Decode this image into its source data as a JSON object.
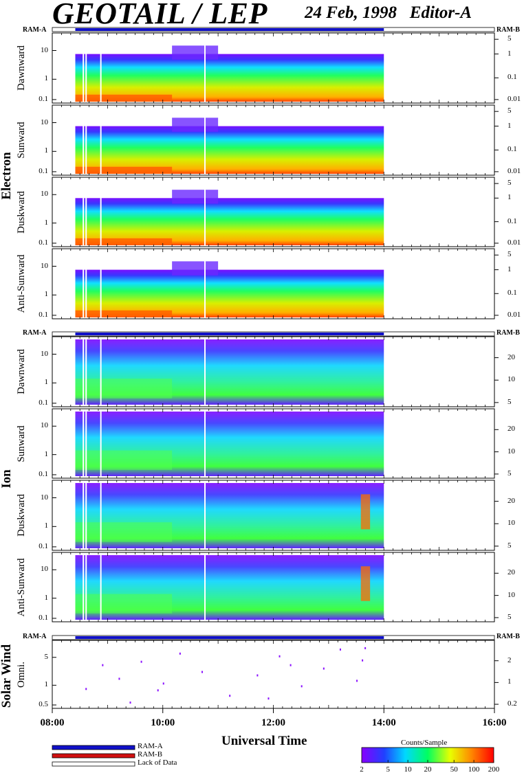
{
  "chart_data": {
    "type": "heatmap",
    "title": "GEOTAIL / LEP",
    "date": "24 Feb, 1998",
    "editor": "Editor-A",
    "xlabel": "Universal Time",
    "xlim": [
      "08:00",
      "16:00"
    ],
    "x_ticks": [
      "08:00",
      "10:00",
      "12:00",
      "14:00",
      "16:00"
    ],
    "data_coverage": [
      "08:25",
      "14:00"
    ],
    "groups": [
      {
        "name": "Electron",
        "panels": [
          {
            "label": "Dawnward",
            "left_ticks": [
              "10",
              "1",
              "0.1"
            ],
            "right_ticks": [
              "5",
              "1",
              "0.1",
              "0.01"
            ]
          },
          {
            "label": "Sunward",
            "left_ticks": [
              "10",
              "1",
              "0.1"
            ],
            "right_ticks": [
              "5",
              "1",
              "0.1",
              "0.01"
            ]
          },
          {
            "label": "Duskward",
            "left_ticks": [
              "10",
              "1",
              "0.1"
            ],
            "right_ticks": [
              "5",
              "1",
              "0.1",
              "0.01"
            ]
          },
          {
            "label": "Anti-Sunward",
            "left_ticks": [
              "10",
              "1",
              "0.1"
            ],
            "right_ticks": [
              "5",
              "1",
              "0.1",
              "0.01"
            ]
          }
        ]
      },
      {
        "name": "Ion",
        "panels": [
          {
            "label": "Dawnward",
            "left_ticks": [
              "10",
              "1",
              "0.1"
            ],
            "right_ticks": [
              "20",
              "10",
              "5"
            ]
          },
          {
            "label": "Sunward",
            "left_ticks": [
              "10",
              "1",
              "0.1"
            ],
            "right_ticks": [
              "20",
              "10",
              "5"
            ]
          },
          {
            "label": "Duskward",
            "left_ticks": [
              "10",
              "1",
              "0.1"
            ],
            "right_ticks": [
              "20",
              "10",
              "5"
            ]
          },
          {
            "label": "Anti-Sunward",
            "left_ticks": [
              "10",
              "1",
              "0.1"
            ],
            "right_ticks": [
              "20",
              "10",
              "5"
            ]
          }
        ]
      },
      {
        "name": "Solar Wind",
        "panels": [
          {
            "label": "Omni.",
            "left_ticks": [
              "5",
              "1",
              "0.5"
            ],
            "right_ticks": [
              "2",
              "1",
              "0.2"
            ]
          }
        ]
      }
    ],
    "ram_labels": {
      "left": "RAM-A",
      "right": "RAM-B"
    },
    "legend": [
      {
        "label": "RAM-A",
        "color": "#1010c8"
      },
      {
        "label": "RAM-B",
        "color": "#d01010"
      },
      {
        "label": "Lack of Data",
        "color": "#ffffff"
      }
    ],
    "colorbar": {
      "title": "Counts/Sample",
      "ticks": [
        "2",
        "5",
        "10",
        "20",
        "50",
        "100",
        "200"
      ],
      "scale": "log",
      "range": [
        2,
        200
      ]
    }
  }
}
